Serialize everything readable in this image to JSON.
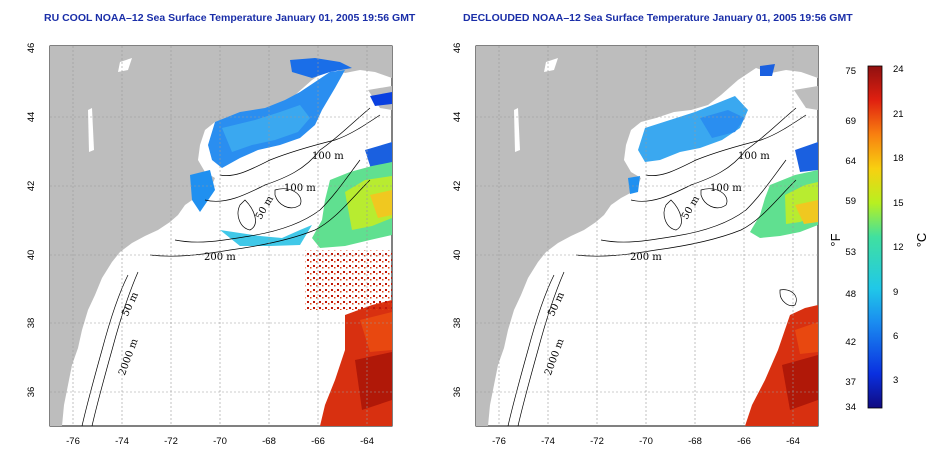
{
  "panels": [
    {
      "title": "RU COOL NOAA–12 Sea Surface Temperature January 01, 2005 19:56 GMT",
      "x_ticks": [
        "-76",
        "-74",
        "-72",
        "-70",
        "-68",
        "-66",
        "-64"
      ],
      "y_ticks": [
        "46",
        "44",
        "42",
        "40",
        "38",
        "36"
      ],
      "contour_labels": [
        "100 m",
        "100 m",
        "50 m",
        "200 m",
        "50 m",
        "2000 m"
      ]
    },
    {
      "title": "DECLOUDED NOAA–12 Sea Surface Temperature January 01, 2005 19:56 GMT",
      "x_ticks": [
        "-76",
        "-74",
        "-72",
        "-70",
        "-68",
        "-66",
        "-64"
      ],
      "y_ticks": [
        "46",
        "44",
        "42",
        "40",
        "38",
        "36"
      ],
      "contour_labels": [
        "100 m",
        "100 m",
        "50 m",
        "200 m",
        "50 m",
        "2000 m"
      ]
    }
  ],
  "colorbar": {
    "f_ticks": [
      "75",
      "69",
      "64",
      "59",
      "53",
      "48",
      "42",
      "37",
      "34"
    ],
    "c_ticks": [
      "24",
      "21",
      "18",
      "15",
      "12",
      "9",
      "6",
      "3"
    ],
    "f_label": "°F",
    "c_label": "°C"
  },
  "colors": {
    "land": "#bdbdbd",
    "title": "#1a2ea8"
  }
}
